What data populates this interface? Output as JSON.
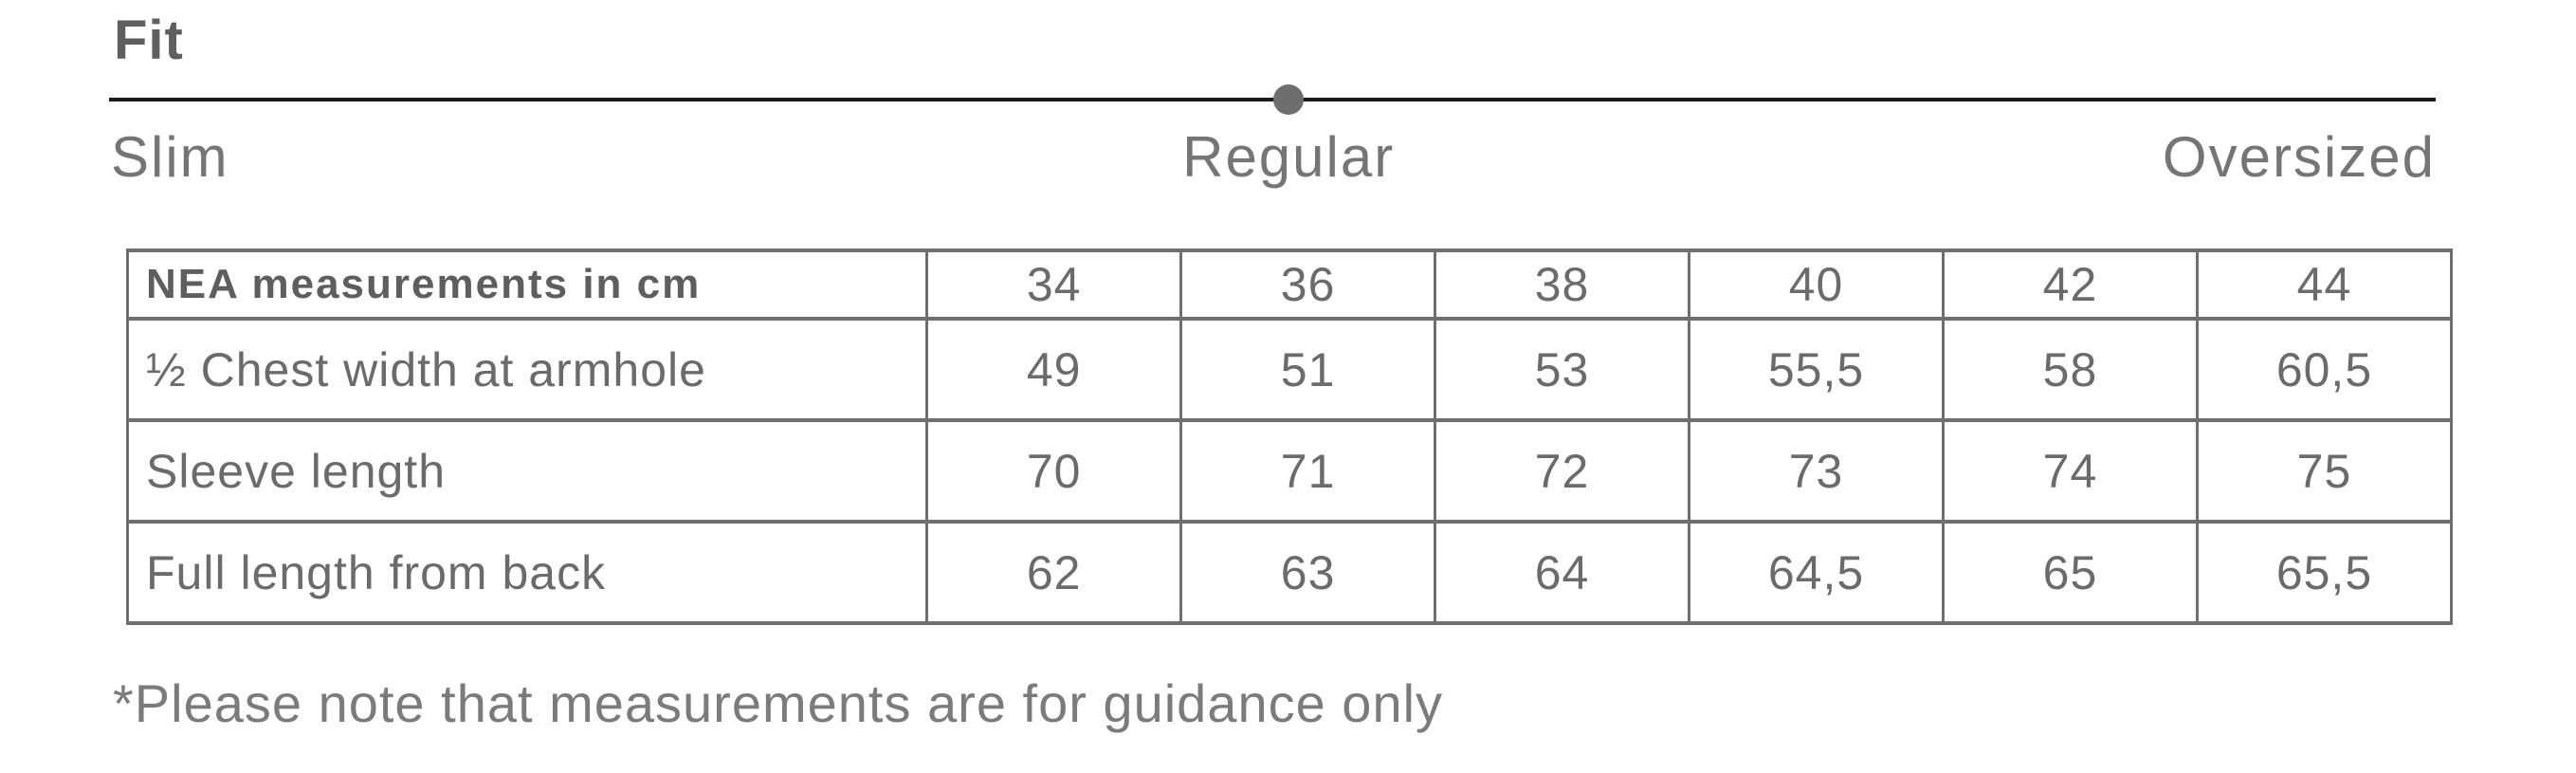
{
  "fit": {
    "title": "Fit",
    "scale_labels": {
      "left": "Slim",
      "middle": "Regular",
      "right": "Oversized"
    },
    "indicator": {
      "selected": "Regular",
      "position_pct": 50.7
    }
  },
  "size_table": {
    "header": [
      "NEA measurements in cm",
      "34",
      "36",
      "38",
      "40",
      "42",
      "44"
    ],
    "rows": [
      {
        "label": "½ Chest width at armhole",
        "values": [
          "49",
          "51",
          "53",
          "55,5",
          "58",
          "60,5"
        ]
      },
      {
        "label": "Sleeve length",
        "values": [
          "70",
          "71",
          "72",
          "73",
          "74",
          "75"
        ]
      },
      {
        "label": "Full length from back",
        "values": [
          "62",
          "63",
          "64",
          "64,5",
          "65",
          "65,5"
        ]
      }
    ]
  },
  "footnote": "*Please note that measurements are for guidance only",
  "colors": {
    "background": "#ffffff",
    "heading_text": "#5f5f5f",
    "scale_label_text": "#757575",
    "table_text": "#6b6b6b",
    "table_border": "#6f6f6f",
    "slider_line": "#1b1b1b",
    "indicator_dot": "#6e6e6e"
  }
}
